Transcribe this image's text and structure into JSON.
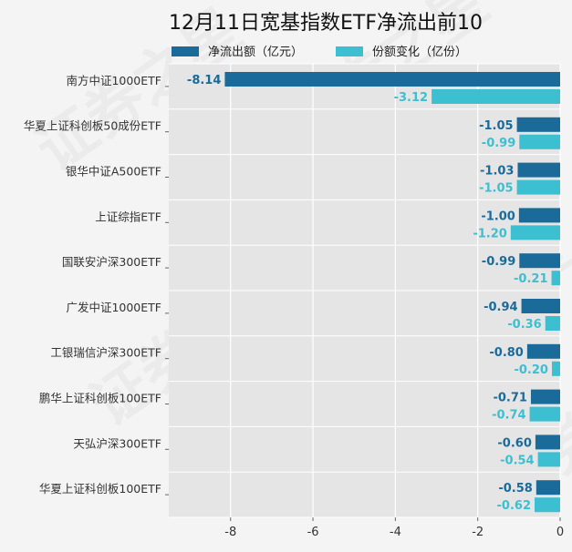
{
  "chart_data": {
    "type": "bar",
    "orientation": "horizontal",
    "title": "12月11日宽基指数ETF净流出前10",
    "categories": [
      "南方中证1000ETF",
      "华夏上证科创板50成份ETF",
      "银华中证A500ETF",
      "上证综指ETF",
      "国联安沪深300ETF",
      "广发中证1000ETF",
      "工银瑞信沪深300ETF",
      "鹏华上证科创板100ETF",
      "天弘沪深300ETF",
      "华夏上证科创板100ETF"
    ],
    "series": [
      {
        "name": "净流出额（亿元）",
        "color": "#1a6b9a",
        "values": [
          -8.14,
          -1.05,
          -1.03,
          -1.0,
          -0.99,
          -0.94,
          -0.8,
          -0.71,
          -0.6,
          -0.58
        ],
        "labels": [
          "-8.14",
          "-1.05",
          "-1.03",
          "-1.00",
          "-0.99",
          "-0.94",
          "-0.80",
          "-0.71",
          "-0.60",
          "-0.58"
        ]
      },
      {
        "name": "份额变化（亿份）",
        "color": "#3bbfd1",
        "values": [
          -3.12,
          -0.99,
          -1.05,
          -1.2,
          -0.21,
          -0.36,
          -0.2,
          -0.74,
          -0.54,
          -0.62
        ],
        "labels": [
          "-3.12",
          "-0.99",
          "-1.05",
          "-1.20",
          "-0.21",
          "-0.36",
          "-0.20",
          "-0.74",
          "-0.54",
          "-0.62"
        ]
      }
    ],
    "xlim": [
      -9.5,
      0
    ],
    "xticks": [
      -8,
      -6,
      -4,
      -2,
      0
    ],
    "xtick_labels": [
      "-8",
      "-6",
      "-4",
      "-2",
      "0"
    ],
    "grid": true,
    "legend_position": "top"
  }
}
